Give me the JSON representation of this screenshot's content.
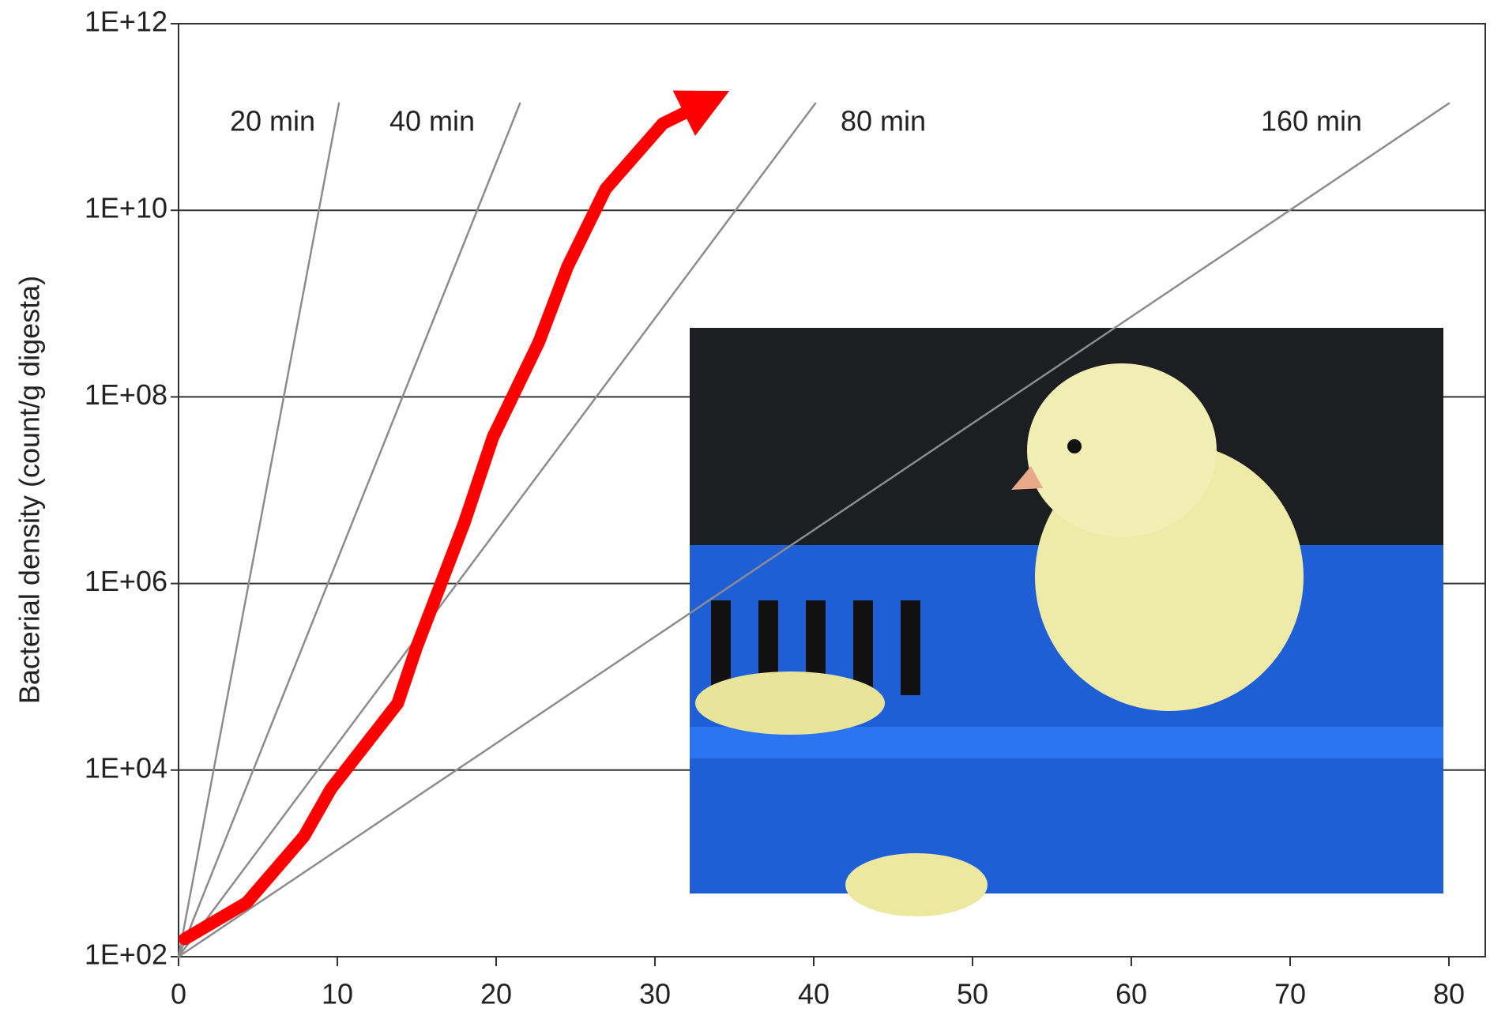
{
  "chart_data": {
    "type": "line",
    "y_label": "Bacterial density (count/g digesta)",
    "xlim": [
      0,
      80
    ],
    "xticks": [
      0,
      10,
      20,
      30,
      40,
      50,
      60,
      70,
      80
    ],
    "ylim": [
      100,
      1000000000000
    ],
    "log_y": true,
    "grid": true,
    "yticks": [
      {
        "value": 100,
        "label": "1E+02"
      },
      {
        "value": 10000,
        "label": "1E+04"
      },
      {
        "value": 1000000,
        "label": "1E+06"
      },
      {
        "value": 100000000,
        "label": "1E+08"
      },
      {
        "value": 10000000000,
        "label": "1E+10"
      },
      {
        "value": 1000000000000,
        "label": "1E+12"
      }
    ],
    "series": [
      {
        "name": "20 min",
        "color": "#8c8c8c",
        "x": [
          0,
          10.1
        ],
        "values": [
          100,
          140000000000
        ]
      },
      {
        "name": "40 min",
        "color": "#8c8c8c",
        "x": [
          0,
          21.5
        ],
        "values": [
          100,
          140000000000
        ]
      },
      {
        "name": "80 min",
        "color": "#8c8c8c",
        "x": [
          0,
          40.1
        ],
        "values": [
          100,
          140000000000
        ]
      },
      {
        "name": "160 min",
        "color": "#8c8c8c",
        "x": [
          0,
          80
        ],
        "values": [
          100,
          140000000000
        ]
      },
      {
        "color": "#ff0000",
        "x": [
          0.4,
          4.3,
          7.9,
          9.6,
          13.8,
          15,
          18,
          19.8,
          22.7,
          24.5,
          26.9,
          30.5,
          32.9
        ],
        "values": [
          155,
          380,
          1950,
          6300,
          52000,
          210000,
          4500000,
          37000000,
          390000000,
          2500000000,
          17000000000,
          85000000000,
          135000000000
        ]
      }
    ]
  }
}
